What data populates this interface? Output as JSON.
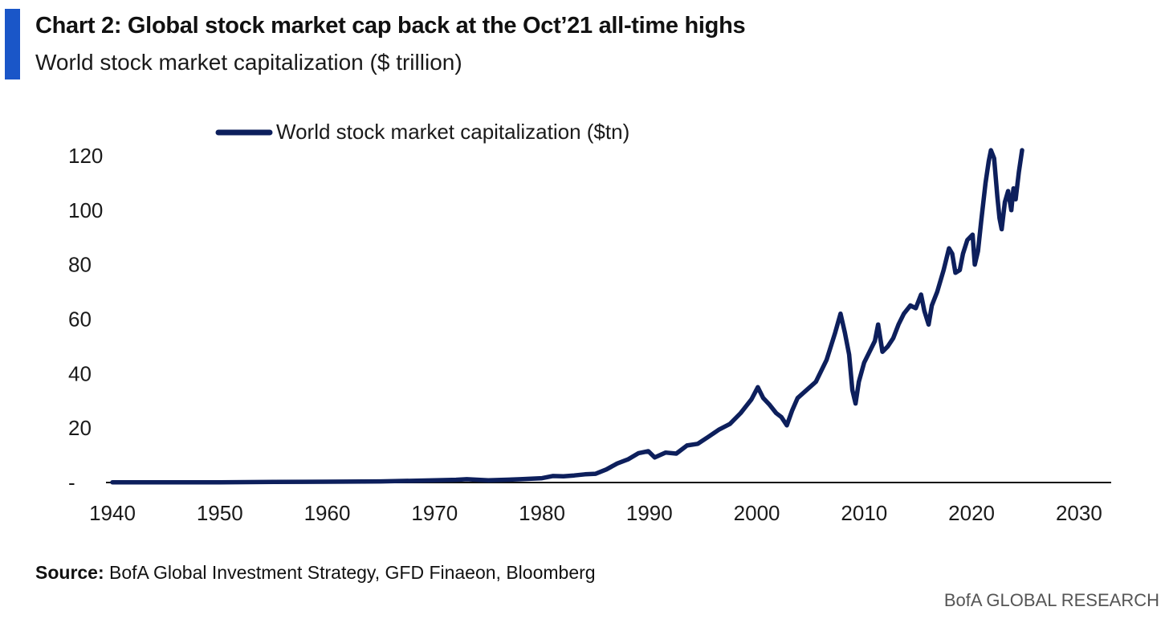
{
  "header": {
    "title": "Chart 2: Global stock market cap back at the Oct’21 all-time highs",
    "subtitle": "World stock market capitalization ($ trillion)"
  },
  "colors": {
    "accent": "#1a56c8",
    "series": "#0d1f5c",
    "axis": "#111111"
  },
  "chart_data": {
    "type": "line",
    "title": "Chart 2: Global stock market cap back at the Oct’21 all-time highs",
    "subtitle": "World stock market capitalization ($ trillion)",
    "xlabel": "",
    "ylabel": "",
    "xlim": [
      1940,
      2033
    ],
    "ylim": [
      0,
      130
    ],
    "x_ticks": [
      1940,
      1950,
      1960,
      1970,
      1980,
      1990,
      2000,
      2010,
      2020,
      2030
    ],
    "y_ticks": [
      0,
      20,
      40,
      60,
      80,
      100,
      120
    ],
    "y_tick_labels": [
      "-",
      "20",
      "40",
      "60",
      "80",
      "100",
      "120"
    ],
    "legend_position": "top",
    "grid": false,
    "series": [
      {
        "name": "World stock market capitalization ($tn)",
        "x": [
          1940,
          1945,
          1950,
          1955,
          1960,
          1965,
          1970,
          1972,
          1973,
          1975,
          1978,
          1980,
          1981,
          1982,
          1983,
          1984,
          1985,
          1986,
          1987,
          1988,
          1989,
          1989.9,
          1990.5,
          1991.5,
          1992.5,
          1993.5,
          1994.5,
          1995.5,
          1996.5,
          1997.5,
          1998.5,
          1999.5,
          2000.1,
          2000.6,
          2001.2,
          2001.8,
          2002.3,
          2002.8,
          2003.3,
          2003.8,
          2004.5,
          2005.5,
          2006.5,
          2007.3,
          2007.8,
          2008.2,
          2008.6,
          2008.9,
          2009.2,
          2009.5,
          2010,
          2010.5,
          2011,
          2011.3,
          2011.7,
          2012.2,
          2012.7,
          2013.2,
          2013.7,
          2014.3,
          2014.8,
          2015.3,
          2015.6,
          2016,
          2016.3,
          2016.8,
          2017.4,
          2017.9,
          2018.2,
          2018.5,
          2018.9,
          2019.2,
          2019.6,
          2020.1,
          2020.3,
          2020.6,
          2020.9,
          2021.3,
          2021.6,
          2021.8,
          2022.1,
          2022.4,
          2022.6,
          2022.8,
          2023.1,
          2023.4,
          2023.7,
          2023.9,
          2024.1,
          2024.4,
          2024.7
        ],
        "values": [
          0.1,
          0.1,
          0.1,
          0.2,
          0.3,
          0.4,
          0.8,
          1.0,
          1.2,
          0.8,
          1.2,
          1.6,
          2.4,
          2.3,
          2.6,
          3.0,
          3.2,
          4.8,
          7.0,
          8.5,
          10.8,
          11.5,
          9.2,
          11.0,
          10.6,
          13.6,
          14.2,
          16.8,
          19.5,
          21.5,
          25.5,
          30.5,
          35.0,
          31.0,
          28.5,
          25.5,
          24.0,
          21.0,
          26.5,
          31.0,
          33.5,
          37.0,
          45.0,
          55.0,
          62.0,
          55.0,
          47.0,
          34.0,
          29.0,
          37.0,
          44.0,
          48.0,
          52.0,
          58.0,
          48.0,
          50.0,
          53.0,
          58.0,
          62.0,
          65.0,
          64.0,
          69.0,
          63.0,
          58.0,
          65.0,
          70.0,
          78.0,
          86.0,
          84.0,
          77.0,
          78.0,
          84.0,
          89.0,
          91.0,
          80.0,
          85.0,
          96.0,
          110.0,
          118.0,
          122.0,
          119.0,
          105.0,
          97.0,
          93.0,
          103.0,
          107.0,
          100.0,
          108.0,
          104.0,
          114.0,
          122.0
        ]
      }
    ]
  },
  "footer": {
    "source_label": "Source:",
    "source_text": " BofA Global Investment Strategy, GFD Finaeon, Bloomberg",
    "brand": "BofA GLOBAL RESEARCH"
  }
}
